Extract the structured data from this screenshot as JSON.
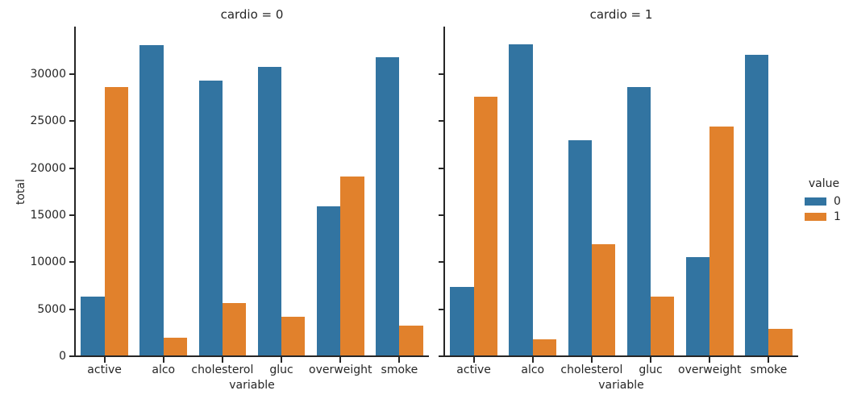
{
  "chart_data": {
    "type": "bar",
    "title": "",
    "xlabel": "variable",
    "ylabel": "total",
    "grid": false,
    "ylim": [
      0,
      35070
    ],
    "yticks": [
      0,
      5000,
      10000,
      15000,
      20000,
      25000,
      30000
    ],
    "categories": [
      "active",
      "alco",
      "cholesterol",
      "gluc",
      "overweight",
      "smoke"
    ],
    "faceted_by": "cardio",
    "facets": [
      {
        "title": "cardio = 0",
        "series": [
          {
            "name": "0",
            "color": "#3274a1",
            "values": [
              6378,
              33080,
              29330,
              30824,
              15915,
              31781
            ]
          },
          {
            "name": "1",
            "color": "#e1812c",
            "values": [
              28643,
              1941,
              5691,
              4197,
              19106,
              3240
            ]
          }
        ]
      },
      {
        "title": "cardio = 1",
        "series": [
          {
            "name": "0",
            "color": "#3274a1",
            "values": [
              7361,
              33156,
              23017,
              28662,
              10572,
              32048
            ]
          },
          {
            "name": "1",
            "color": "#e1812c",
            "values": [
              27618,
              1823,
              11962,
              6317,
              24407,
              2931
            ]
          }
        ]
      }
    ],
    "legend": {
      "title": "value",
      "position": "center right",
      "entries": [
        {
          "label": "0",
          "color": "#3274a1"
        },
        {
          "label": "1",
          "color": "#e1812c"
        }
      ]
    },
    "colors": {
      "series_0": "#3274a1",
      "series_1": "#e1812c",
      "text": "#262626"
    }
  }
}
